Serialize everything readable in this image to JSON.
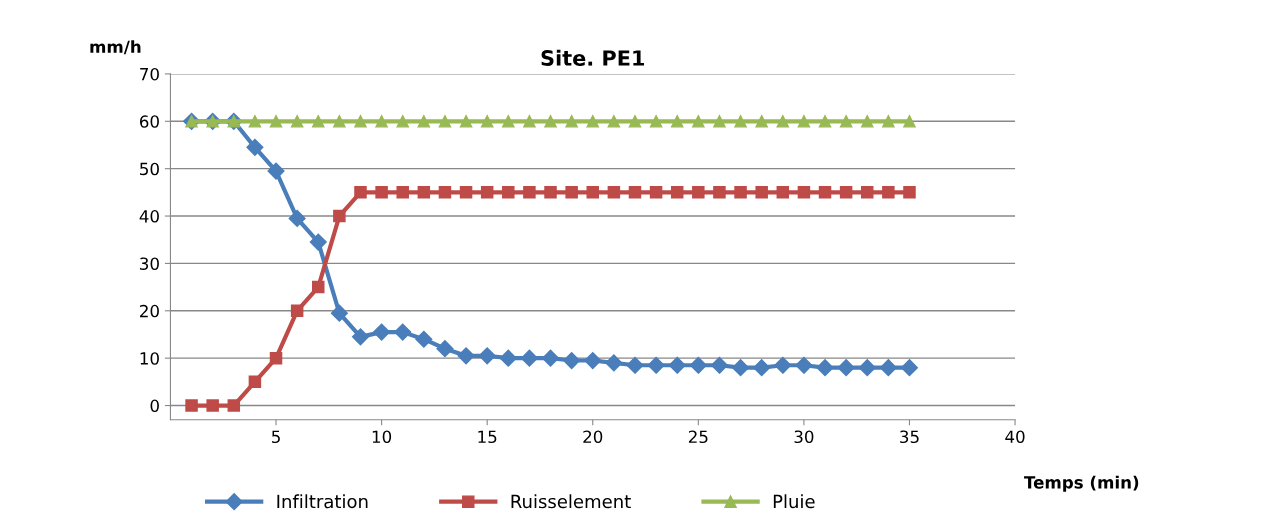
{
  "chart_data": {
    "type": "line",
    "title": "Site. PE1",
    "xlabel": "Temps (min)",
    "ylabel": "mm/h",
    "x": [
      1,
      2,
      3,
      4,
      5,
      6,
      7,
      8,
      9,
      10,
      11,
      12,
      13,
      14,
      15,
      16,
      17,
      18,
      19,
      20,
      21,
      22,
      23,
      24,
      25,
      26,
      27,
      28,
      29,
      30,
      31,
      32,
      33,
      34,
      35
    ],
    "series": [
      {
        "name": "Infiltration",
        "color": "#4a7ebb",
        "marker": "diamond",
        "values": [
          60,
          60,
          60,
          54.5,
          49.5,
          39.5,
          34.5,
          19.5,
          14.5,
          15.5,
          15.5,
          14,
          12,
          10.5,
          10.5,
          10,
          10,
          10,
          9.5,
          9.5,
          9,
          8.5,
          8.5,
          8.5,
          8.5,
          8.5,
          8,
          8,
          8.5,
          8.5,
          8,
          8,
          8,
          8,
          8
        ]
      },
      {
        "name": "Ruisselement",
        "color": "#be4b48",
        "marker": "square",
        "values": [
          0,
          0,
          0,
          5,
          10,
          20,
          25,
          40,
          45,
          45,
          45,
          45,
          45,
          45,
          45,
          45,
          45,
          45,
          45,
          45,
          45,
          45,
          45,
          45,
          45,
          45,
          45,
          45,
          45,
          45,
          45,
          45,
          45,
          45,
          45
        ]
      },
      {
        "name": "Pluie",
        "color": "#98b954",
        "marker": "triangle",
        "values": [
          60,
          60,
          60,
          60,
          60,
          60,
          60,
          60,
          60,
          60,
          60,
          60,
          60,
          60,
          60,
          60,
          60,
          60,
          60,
          60,
          60,
          60,
          60,
          60,
          60,
          60,
          60,
          60,
          60,
          60,
          60,
          60,
          60,
          60,
          60
        ]
      }
    ],
    "xlim": [
      0,
      40
    ],
    "xticks": [
      5,
      10,
      15,
      20,
      25,
      30,
      35,
      40
    ],
    "ylim": [
      -3,
      70
    ],
    "yticks": [
      0,
      10,
      20,
      30,
      40,
      50,
      60,
      70
    ],
    "grid": "y",
    "legend": "bottom",
    "line_style": "solid"
  }
}
